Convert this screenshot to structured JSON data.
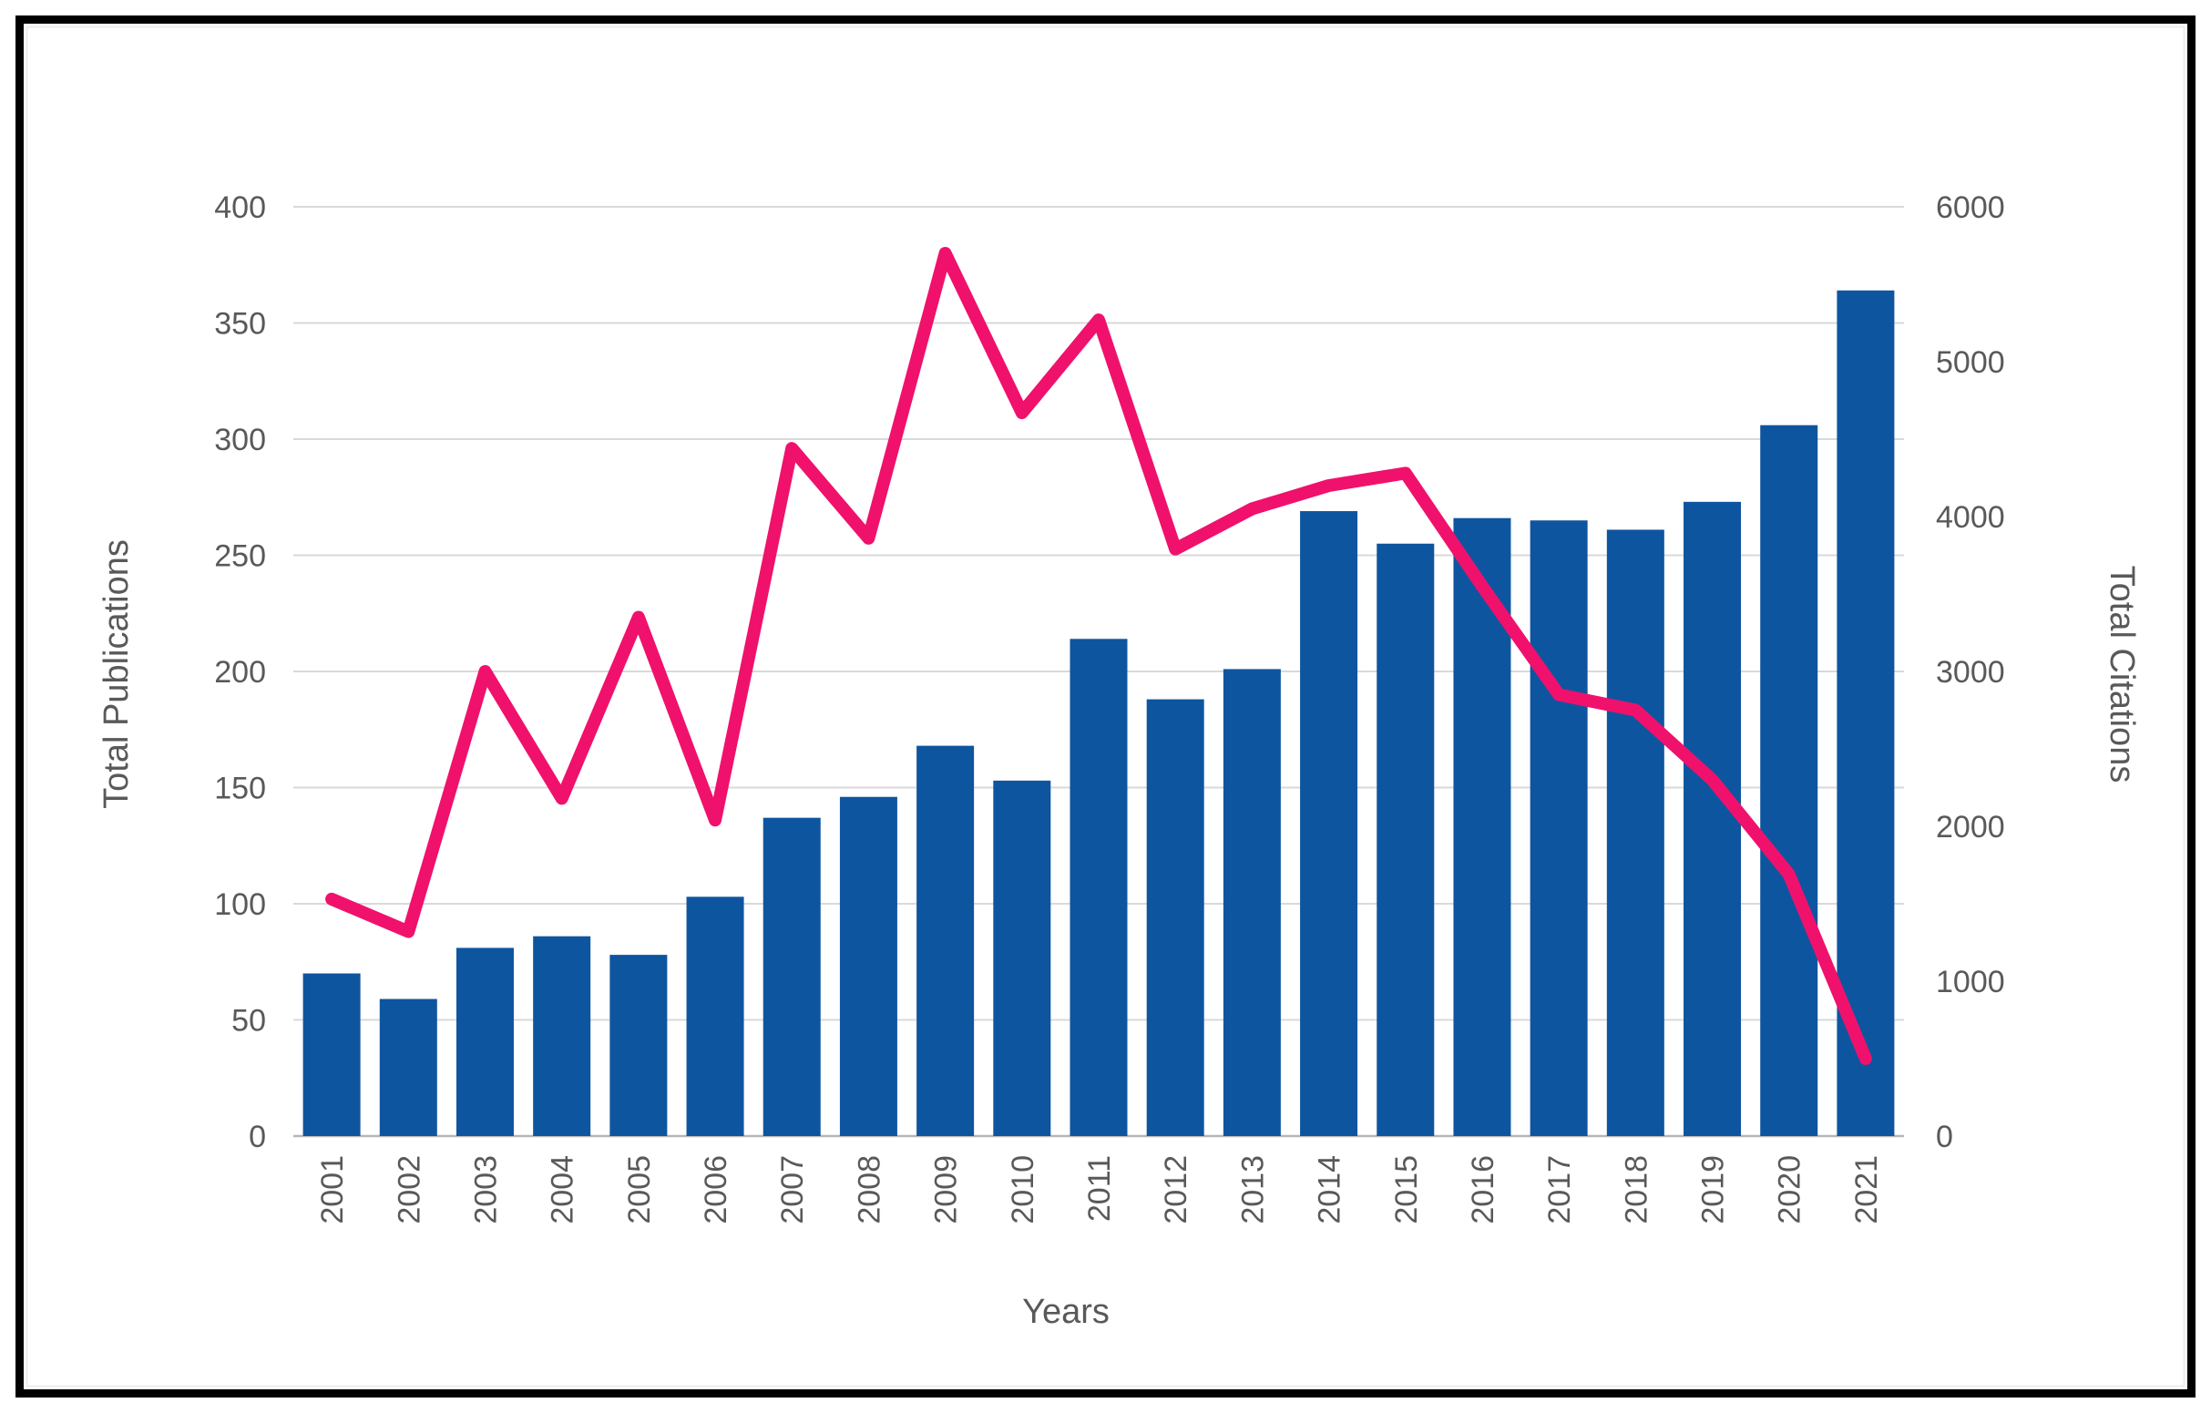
{
  "chart_data": {
    "type": "bar",
    "subtype": "combo-bar-line",
    "title": "",
    "xlabel": "Years",
    "categories": [
      "2001",
      "2002",
      "2003",
      "2004",
      "2005",
      "2006",
      "2007",
      "2008",
      "2009",
      "2010",
      "2011",
      "2012",
      "2013",
      "2014",
      "2015",
      "2016",
      "2017",
      "2018",
      "2019",
      "2020",
      "2021"
    ],
    "series": [
      {
        "name": "Total Publications",
        "type": "bar",
        "axis": "left",
        "color": "#0e55a0",
        "values": [
          70,
          59,
          81,
          86,
          78,
          103,
          137,
          146,
          168,
          153,
          214,
          188,
          201,
          269,
          255,
          266,
          265,
          261,
          273,
          306,
          364
        ]
      },
      {
        "name": "Total Citations",
        "type": "line",
        "axis": "right",
        "color": "#f0116c",
        "values": [
          1530,
          1320,
          3000,
          2180,
          3350,
          2040,
          4440,
          3860,
          5700,
          4670,
          5270,
          3790,
          4050,
          4200,
          4280,
          3550,
          2850,
          2750,
          2300,
          1690,
          500
        ]
      }
    ],
    "y_left": {
      "title": "Total Publications",
      "min": 0,
      "max": 400,
      "step": 50,
      "ticks": [
        "0",
        "50",
        "100",
        "150",
        "200",
        "250",
        "300",
        "350",
        "400"
      ]
    },
    "y_right": {
      "title": "Total Citations",
      "min": 0,
      "max": 6000,
      "step": 1000,
      "ticks": [
        "0",
        "1000",
        "2000",
        "3000",
        "4000",
        "5000",
        "6000"
      ]
    },
    "grid": true,
    "legend_position": "none",
    "text_color": "#595959",
    "grid_color": "#d9d9d9",
    "axis_line_color": "#b7b7b7",
    "frame_color": "#000000"
  }
}
